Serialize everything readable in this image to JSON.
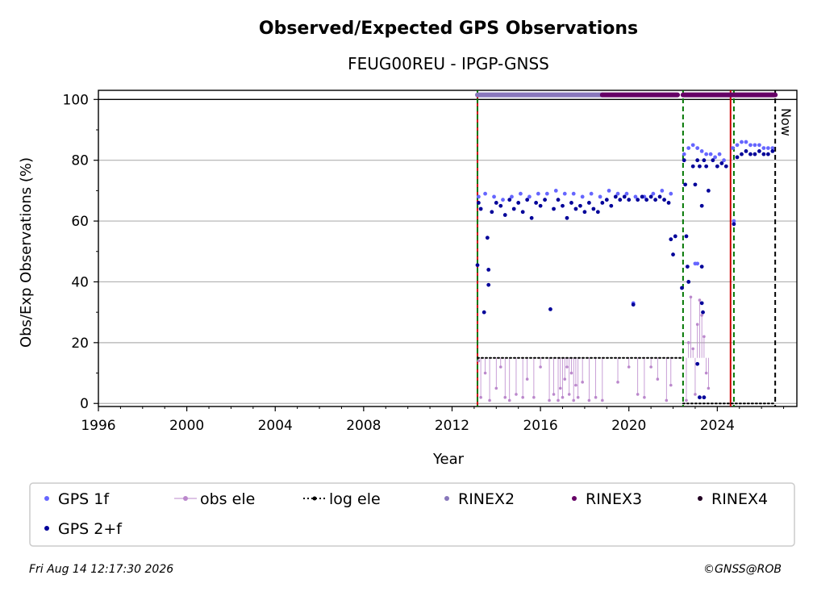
{
  "chart_data": {
    "type": "scatter",
    "title": "Observed/Expected GPS Observations",
    "subtitle": "FEUG00REU - IPGP-GNSS",
    "xlabel": "Year",
    "ylabel": "Obs/Exp Observations (%)",
    "xlim": [
      1996,
      2027.6
    ],
    "ylim": [
      -1,
      103
    ],
    "xticks": [
      1996,
      2000,
      2004,
      2008,
      2012,
      2016,
      2020,
      2024
    ],
    "yticks": [
      0,
      20,
      40,
      60,
      80,
      100
    ],
    "grid": "horizontal",
    "now_label": "Now",
    "now_x": 2026.62,
    "event_lines": [
      {
        "x": 2013.15,
        "color": "#cc0000",
        "style": "solid"
      },
      {
        "x": 2013.15,
        "color": "#007700",
        "style": "dashed"
      },
      {
        "x": 2022.45,
        "color": "#007700",
        "style": "dashed"
      },
      {
        "x": 2024.6,
        "color": "#cc0000",
        "style": "solid"
      },
      {
        "x": 2024.75,
        "color": "#007700",
        "style": "dashed"
      }
    ],
    "series": [
      {
        "name": "GPS 1f",
        "color": "#6666ff",
        "points": [
          [
            2013.2,
            68
          ],
          [
            2013.5,
            69
          ],
          [
            2013.9,
            68
          ],
          [
            2014.3,
            67
          ],
          [
            2014.7,
            68
          ],
          [
            2015.1,
            69
          ],
          [
            2015.5,
            68
          ],
          [
            2015.9,
            69
          ],
          [
            2016.3,
            69
          ],
          [
            2016.7,
            70
          ],
          [
            2017.1,
            69
          ],
          [
            2017.5,
            69
          ],
          [
            2017.9,
            68
          ],
          [
            2018.3,
            69
          ],
          [
            2018.7,
            68
          ],
          [
            2019.1,
            70
          ],
          [
            2019.5,
            69
          ],
          [
            2019.9,
            69
          ],
          [
            2020.3,
            68
          ],
          [
            2020.7,
            68
          ],
          [
            2021.1,
            69
          ],
          [
            2021.5,
            70
          ],
          [
            2021.9,
            69
          ],
          [
            2020.2,
            33
          ],
          [
            2022.5,
            82
          ],
          [
            2022.7,
            84
          ],
          [
            2022.9,
            85
          ],
          [
            2023.1,
            84
          ],
          [
            2023.3,
            83
          ],
          [
            2023.5,
            82
          ],
          [
            2023.7,
            82
          ],
          [
            2023.9,
            81
          ],
          [
            2024.1,
            82
          ],
          [
            2024.3,
            80
          ],
          [
            2023.0,
            46
          ],
          [
            2023.1,
            46
          ],
          [
            2024.7,
            84
          ],
          [
            2024.9,
            85
          ],
          [
            2025.1,
            86
          ],
          [
            2025.3,
            86
          ],
          [
            2025.5,
            85
          ],
          [
            2025.7,
            85
          ],
          [
            2025.9,
            85
          ],
          [
            2026.1,
            84
          ],
          [
            2026.3,
            84
          ],
          [
            2026.5,
            84
          ],
          [
            2024.75,
            60
          ]
        ]
      },
      {
        "name": "GPS 2+f",
        "color": "#000099",
        "points": [
          [
            2013.15,
            45.5
          ],
          [
            2013.2,
            66
          ],
          [
            2013.3,
            64
          ],
          [
            2013.45,
            30
          ],
          [
            2013.6,
            54.5
          ],
          [
            2013.65,
            44
          ],
          [
            2013.65,
            39
          ],
          [
            2013.8,
            63
          ],
          [
            2014.0,
            66
          ],
          [
            2014.2,
            65
          ],
          [
            2014.4,
            62
          ],
          [
            2014.6,
            67
          ],
          [
            2014.8,
            64
          ],
          [
            2015.0,
            66
          ],
          [
            2015.2,
            63
          ],
          [
            2015.4,
            67
          ],
          [
            2015.6,
            61
          ],
          [
            2015.8,
            66
          ],
          [
            2016.0,
            65
          ],
          [
            2016.2,
            67
          ],
          [
            2016.45,
            31
          ],
          [
            2016.6,
            64
          ],
          [
            2016.8,
            67
          ],
          [
            2017.0,
            65
          ],
          [
            2017.2,
            61
          ],
          [
            2017.4,
            66
          ],
          [
            2017.6,
            64
          ],
          [
            2017.8,
            65
          ],
          [
            2018.0,
            63
          ],
          [
            2018.2,
            66
          ],
          [
            2018.4,
            64
          ],
          [
            2018.6,
            63
          ],
          [
            2018.8,
            66
          ],
          [
            2019.0,
            67
          ],
          [
            2019.2,
            65
          ],
          [
            2019.4,
            68
          ],
          [
            2019.6,
            67
          ],
          [
            2019.8,
            68
          ],
          [
            2020.0,
            67
          ],
          [
            2020.2,
            32.5
          ],
          [
            2020.4,
            67
          ],
          [
            2020.6,
            68
          ],
          [
            2020.8,
            67
          ],
          [
            2021.0,
            68
          ],
          [
            2021.2,
            67
          ],
          [
            2021.4,
            68
          ],
          [
            2021.6,
            67
          ],
          [
            2021.8,
            66
          ],
          [
            2021.9,
            54
          ],
          [
            2022.0,
            49
          ],
          [
            2022.1,
            55
          ],
          [
            2022.4,
            38
          ],
          [
            2022.5,
            80
          ],
          [
            2022.55,
            72
          ],
          [
            2022.6,
            55
          ],
          [
            2022.65,
            45
          ],
          [
            2022.7,
            40
          ],
          [
            2022.9,
            78
          ],
          [
            2023.0,
            72
          ],
          [
            2023.1,
            80
          ],
          [
            2023.2,
            78
          ],
          [
            2023.3,
            65
          ],
          [
            2023.4,
            80
          ],
          [
            2023.5,
            78
          ],
          [
            2023.6,
            70
          ],
          [
            2023.8,
            80
          ],
          [
            2024.0,
            78
          ],
          [
            2024.2,
            79
          ],
          [
            2024.4,
            78
          ],
          [
            2023.1,
            13
          ],
          [
            2023.2,
            2
          ],
          [
            2023.3,
            33
          ],
          [
            2023.35,
            30
          ],
          [
            2023.4,
            2
          ],
          [
            2023.3,
            45
          ],
          [
            2024.75,
            59
          ],
          [
            2024.9,
            81
          ],
          [
            2025.1,
            82
          ],
          [
            2025.3,
            83
          ],
          [
            2025.5,
            82
          ],
          [
            2025.7,
            82
          ],
          [
            2025.9,
            83
          ],
          [
            2026.1,
            82
          ],
          [
            2026.3,
            82
          ],
          [
            2026.5,
            83
          ]
        ]
      },
      {
        "name": "obs ele",
        "color": "#bb88cc",
        "points": [
          [
            2013.2,
            14
          ],
          [
            2013.3,
            2
          ],
          [
            2013.5,
            10
          ],
          [
            2013.7,
            1
          ],
          [
            2014.0,
            5
          ],
          [
            2014.2,
            12
          ],
          [
            2014.4,
            2
          ],
          [
            2014.6,
            1
          ],
          [
            2014.9,
            3
          ],
          [
            2015.2,
            2
          ],
          [
            2015.4,
            8
          ],
          [
            2015.7,
            2
          ],
          [
            2016.0,
            12
          ],
          [
            2016.4,
            1
          ],
          [
            2016.6,
            3
          ],
          [
            2016.8,
            1
          ],
          [
            2016.9,
            5
          ],
          [
            2017.0,
            2
          ],
          [
            2017.1,
            8
          ],
          [
            2017.2,
            12
          ],
          [
            2017.3,
            3
          ],
          [
            2017.4,
            10
          ],
          [
            2017.5,
            1
          ],
          [
            2017.6,
            6
          ],
          [
            2017.7,
            2
          ],
          [
            2017.9,
            7
          ],
          [
            2018.2,
            1
          ],
          [
            2018.5,
            2
          ],
          [
            2018.8,
            1
          ],
          [
            2019.5,
            7
          ],
          [
            2020.0,
            12
          ],
          [
            2020.4,
            3
          ],
          [
            2020.7,
            2
          ],
          [
            2021.0,
            12
          ],
          [
            2021.3,
            8
          ],
          [
            2021.7,
            1
          ],
          [
            2021.9,
            6
          ],
          [
            2022.6,
            1
          ],
          [
            2022.7,
            20
          ],
          [
            2022.8,
            35
          ],
          [
            2022.9,
            18
          ],
          [
            2023.0,
            3
          ],
          [
            2023.1,
            26
          ],
          [
            2023.2,
            34
          ],
          [
            2023.3,
            29
          ],
          [
            2023.4,
            22
          ],
          [
            2023.5,
            10
          ],
          [
            2023.6,
            5
          ]
        ]
      },
      {
        "name": "log ele",
        "color": "#000000",
        "segments": [
          {
            "x0": 2013.15,
            "x1": 2022.45,
            "y": 15
          },
          {
            "x0": 2022.45,
            "x1": 2026.62,
            "y": 0
          }
        ]
      },
      {
        "name": "RINEX2",
        "color": "#8877bb",
        "segments": [
          {
            "x0": 2013.15,
            "x1": 2018.8,
            "y": 101.5
          }
        ]
      },
      {
        "name": "RINEX3",
        "color": "#660066",
        "segments": [
          {
            "x0": 2018.8,
            "x1": 2022.2,
            "y": 101.5
          },
          {
            "x0": 2022.45,
            "x1": 2026.62,
            "y": 101.5
          }
        ]
      },
      {
        "name": "RINEX4",
        "color": "#220022",
        "segments": []
      }
    ],
    "legend": [
      {
        "label": "GPS 1f",
        "marker": "dot",
        "color": "#6666ff"
      },
      {
        "label": "obs ele",
        "marker": "line-dot",
        "color": "#bb88cc"
      },
      {
        "label": "log ele",
        "marker": "dotted-line",
        "color": "#000000"
      },
      {
        "label": "RINEX2",
        "marker": "dot",
        "color": "#8877bb"
      },
      {
        "label": "RINEX3",
        "marker": "dot",
        "color": "#660066"
      },
      {
        "label": "RINEX4",
        "marker": "dot",
        "color": "#220022"
      },
      {
        "label": "GPS 2+f",
        "marker": "dot",
        "color": "#000099"
      }
    ],
    "legend_position": "bottom"
  },
  "footer": {
    "timestamp": "Fri Aug 14 12:17:30 2026",
    "credit": "©GNSS@ROB"
  }
}
